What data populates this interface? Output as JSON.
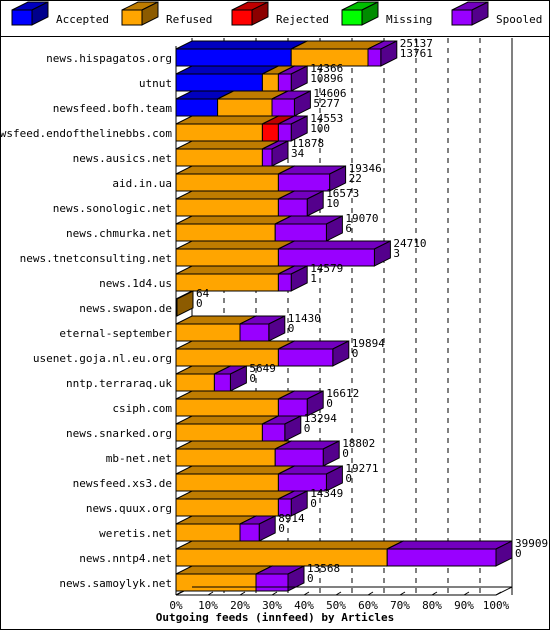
{
  "chart_data": {
    "type": "bar",
    "stacked": true,
    "orientation": "horizontal",
    "xlabel": "Outgoing feeds (innfeed) by Articles",
    "xlim": [
      0,
      100
    ],
    "x_unit": "%",
    "ticks": [
      "0%",
      "10%",
      "20%",
      "30%",
      "40%",
      "50%",
      "60%",
      "70%",
      "80%",
      "90%",
      "100%"
    ],
    "legend_position": "top",
    "series": [
      {
        "name": "Accepted",
        "color": "#0000ff"
      },
      {
        "name": "Refused",
        "color": "#ffa500"
      },
      {
        "name": "Rejected",
        "color": "#ff0000"
      },
      {
        "name": "Missing",
        "color": "#00ff00"
      },
      {
        "name": "Spooled",
        "color": "#9900ff"
      }
    ],
    "rows": [
      {
        "name": "news.hispagatos.org",
        "label1": "25137",
        "label2": "13761",
        "values": [
          36,
          24,
          0,
          0,
          4
        ]
      },
      {
        "name": "utnut",
        "label1": "14366",
        "label2": "10896",
        "values": [
          27,
          5,
          0,
          0,
          4
        ]
      },
      {
        "name": "newsfeed.bofh.team",
        "label1": "14606",
        "label2": "5277",
        "values": [
          13,
          17,
          0,
          0,
          7
        ]
      },
      {
        "name": "newsfeed.endofthelinebbs.com",
        "label1": "14553",
        "label2": "100",
        "values": [
          0,
          27,
          5,
          0,
          4
        ]
      },
      {
        "name": "news.ausics.net",
        "label1": "11878",
        "label2": "34",
        "values": [
          0,
          27,
          0,
          0,
          3
        ]
      },
      {
        "name": "aid.in.ua",
        "label1": "19346",
        "label2": "22",
        "values": [
          0,
          32,
          0,
          0,
          16
        ]
      },
      {
        "name": "news.sonologic.net",
        "label1": "16573",
        "label2": "10",
        "values": [
          0,
          32,
          0,
          0,
          9
        ]
      },
      {
        "name": "news.chmurka.net",
        "label1": "19070",
        "label2": "6",
        "values": [
          0,
          31,
          0,
          0,
          16
        ]
      },
      {
        "name": "news.tnetconsulting.net",
        "label1": "24710",
        "label2": "3",
        "values": [
          0,
          32,
          0,
          0,
          30
        ]
      },
      {
        "name": "news.1d4.us",
        "label1": "14579",
        "label2": "1",
        "values": [
          0,
          32,
          0,
          0,
          4
        ]
      },
      {
        "name": "news.swapon.de",
        "label1": "64",
        "label2": "0",
        "values": [
          0,
          0,
          0,
          0,
          0
        ]
      },
      {
        "name": "eternal-september",
        "label1": "11430",
        "label2": "0",
        "values": [
          0,
          20,
          0,
          0,
          9
        ]
      },
      {
        "name": "usenet.goja.nl.eu.org",
        "label1": "19894",
        "label2": "0",
        "values": [
          0,
          32,
          0,
          0,
          17
        ]
      },
      {
        "name": "nntp.terraraq.uk",
        "label1": "5649",
        "label2": "0",
        "values": [
          0,
          12,
          0,
          0,
          5
        ]
      },
      {
        "name": "csiph.com",
        "label1": "16612",
        "label2": "0",
        "values": [
          0,
          32,
          0,
          0,
          9
        ]
      },
      {
        "name": "news.snarked.org",
        "label1": "13294",
        "label2": "0",
        "values": [
          0,
          27,
          0,
          0,
          7
        ]
      },
      {
        "name": "mb-net.net",
        "label1": "18802",
        "label2": "0",
        "values": [
          0,
          31,
          0,
          0,
          15
        ]
      },
      {
        "name": "newsfeed.xs3.de",
        "label1": "19271",
        "label2": "0",
        "values": [
          0,
          32,
          0,
          0,
          15
        ]
      },
      {
        "name": "news.quux.org",
        "label1": "14349",
        "label2": "0",
        "values": [
          0,
          32,
          0,
          0,
          4
        ]
      },
      {
        "name": "weretis.net",
        "label1": "8914",
        "label2": "0",
        "values": [
          0,
          20,
          0,
          0,
          6
        ]
      },
      {
        "name": "news.nntp4.net",
        "label1": "39909",
        "label2": "0",
        "values": [
          0,
          66,
          0,
          0,
          34
        ]
      },
      {
        "name": "news.samoylyk.net",
        "label1": "13568",
        "label2": "0",
        "values": [
          0,
          25,
          0,
          0,
          10
        ]
      }
    ]
  }
}
